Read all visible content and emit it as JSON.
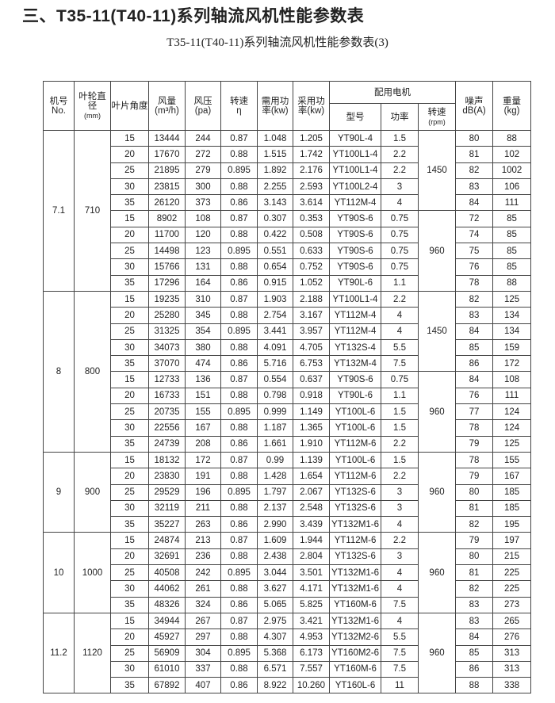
{
  "title": "三、T35-11(T40-11)系列轴流风机性能参数表",
  "subtitle": "T35-11(T40-11)系列轴流风机性能参数表(3)",
  "header": {
    "machine_no": "机号",
    "machine_no_en": "No.",
    "diameter": "叶轮直径",
    "diameter_unit": "(mm)",
    "angle": "叶片角度",
    "flow": "风量",
    "flow_unit": "(m³/h)",
    "pressure": "风压",
    "pressure_unit": "(pa)",
    "speed": "转速",
    "speed_unit": "η",
    "required_power": "需用功",
    "required_power_unit": "率(kw)",
    "used_power": "采用功",
    "used_power_unit": "率(kw)",
    "motor": "配用电机",
    "model": "型号",
    "power": "功率",
    "rpm": "转速",
    "rpm_unit": "(rpm)",
    "noise": "噪声",
    "noise_unit": "dB(A)",
    "weight": "重量",
    "weight_unit": "(kg)"
  },
  "groups": [
    {
      "no": "7.1",
      "diameter": "710",
      "rpm_blocks": [
        "1450",
        "960"
      ],
      "rows": [
        [
          "15",
          "13444",
          "244",
          "0.87",
          "1.048",
          "1.205",
          "YT90L-4",
          "1.5",
          "80",
          "88"
        ],
        [
          "20",
          "17670",
          "272",
          "0.88",
          "1.515",
          "1.742",
          "YT100L1-4",
          "2.2",
          "81",
          "102"
        ],
        [
          "25",
          "21895",
          "279",
          "0.895",
          "1.892",
          "2.176",
          "YT100L1-4",
          "2.2",
          "82",
          "1002"
        ],
        [
          "30",
          "23815",
          "300",
          "0.88",
          "2.255",
          "2.593",
          "YT100L2-4",
          "3",
          "83",
          "106"
        ],
        [
          "35",
          "26120",
          "373",
          "0.86",
          "3.143",
          "3.614",
          "YT112M-4",
          "4",
          "84",
          "111"
        ],
        [
          "15",
          "8902",
          "108",
          "0.87",
          "0.307",
          "0.353",
          "YT90S-6",
          "0.75",
          "72",
          "85"
        ],
        [
          "20",
          "11700",
          "120",
          "0.88",
          "0.422",
          "0.508",
          "YT90S-6",
          "0.75",
          "74",
          "85"
        ],
        [
          "25",
          "14498",
          "123",
          "0.895",
          "0.551",
          "0.633",
          "YT90S-6",
          "0.75",
          "75",
          "85"
        ],
        [
          "30",
          "15766",
          "131",
          "0.88",
          "0.654",
          "0.752",
          "YT90S-6",
          "0.75",
          "76",
          "85"
        ],
        [
          "35",
          "17296",
          "164",
          "0.86",
          "0.915",
          "1.052",
          "YT90L-6",
          "1.1",
          "78",
          "88"
        ]
      ]
    },
    {
      "no": "8",
      "diameter": "800",
      "rpm_blocks": [
        "1450",
        "960"
      ],
      "rows": [
        [
          "15",
          "19235",
          "310",
          "0.87",
          "1.903",
          "2.188",
          "YT100L1-4",
          "2.2",
          "82",
          "125"
        ],
        [
          "20",
          "25280",
          "345",
          "0.88",
          "2.754",
          "3.167",
          "YT112M-4",
          "4",
          "83",
          "134"
        ],
        [
          "25",
          "31325",
          "354",
          "0.895",
          "3.441",
          "3.957",
          "YT112M-4",
          "4",
          "84",
          "134"
        ],
        [
          "30",
          "34073",
          "380",
          "0.88",
          "4.091",
          "4.705",
          "YT132S-4",
          "5.5",
          "85",
          "159"
        ],
        [
          "35",
          "37070",
          "474",
          "0.86",
          "5.716",
          "6.753",
          "YT132M-4",
          "7.5",
          "86",
          "172"
        ],
        [
          "15",
          "12733",
          "136",
          "0.87",
          "0.554",
          "0.637",
          "YT90S-6",
          "0.75",
          "84",
          "108"
        ],
        [
          "20",
          "16733",
          "151",
          "0.88",
          "0.798",
          "0.918",
          "YT90L-6",
          "1.1",
          "76",
          "111"
        ],
        [
          "25",
          "20735",
          "155",
          "0.895",
          "0.999",
          "1.149",
          "YT100L-6",
          "1.5",
          "77",
          "124"
        ],
        [
          "30",
          "22556",
          "167",
          "0.88",
          "1.187",
          "1.365",
          "YT100L-6",
          "1.5",
          "78",
          "124"
        ],
        [
          "35",
          "24739",
          "208",
          "0.86",
          "1.661",
          "1.910",
          "YT112M-6",
          "2.2",
          "79",
          "125"
        ]
      ]
    },
    {
      "no": "9",
      "diameter": "900",
      "rpm_blocks": [
        "960"
      ],
      "rows": [
        [
          "15",
          "18132",
          "172",
          "0.87",
          "0.99",
          "1.139",
          "YT100L-6",
          "1.5",
          "78",
          "155"
        ],
        [
          "20",
          "23830",
          "191",
          "0.88",
          "1.428",
          "1.654",
          "YT112M-6",
          "2.2",
          "79",
          "167"
        ],
        [
          "25",
          "29529",
          "196",
          "0.895",
          "1.797",
          "2.067",
          "YT132S-6",
          "3",
          "80",
          "185"
        ],
        [
          "30",
          "32119",
          "211",
          "0.88",
          "2.137",
          "2.548",
          "YT132S-6",
          "3",
          "81",
          "185"
        ],
        [
          "35",
          "35227",
          "263",
          "0.86",
          "2.990",
          "3.439",
          "YT132M1-6",
          "4",
          "82",
          "195"
        ]
      ]
    },
    {
      "no": "10",
      "diameter": "1000",
      "rpm_blocks": [
        "960"
      ],
      "rows": [
        [
          "15",
          "24874",
          "213",
          "0.87",
          "1.609",
          "1.944",
          "YT112M-6",
          "2.2",
          "79",
          "197"
        ],
        [
          "20",
          "32691",
          "236",
          "0.88",
          "2.438",
          "2.804",
          "YT132S-6",
          "3",
          "80",
          "215"
        ],
        [
          "25",
          "40508",
          "242",
          "0.895",
          "3.044",
          "3.501",
          "YT132M1-6",
          "4",
          "81",
          "225"
        ],
        [
          "30",
          "44062",
          "261",
          "0.88",
          "3.627",
          "4.171",
          "YT132M1-6",
          "4",
          "82",
          "225"
        ],
        [
          "35",
          "48326",
          "324",
          "0.86",
          "5.065",
          "5.825",
          "YT160M-6",
          "7.5",
          "83",
          "273"
        ]
      ]
    },
    {
      "no": "11.2",
      "diameter": "1120",
      "rpm_blocks": [
        "960"
      ],
      "rows": [
        [
          "15",
          "34944",
          "267",
          "0.87",
          "2.975",
          "3.421",
          "YT132M1-6",
          "4",
          "83",
          "265"
        ],
        [
          "20",
          "45927",
          "297",
          "0.88",
          "4.307",
          "4.953",
          "YT132M2-6",
          "5.5",
          "84",
          "276"
        ],
        [
          "25",
          "56909",
          "304",
          "0.895",
          "5.368",
          "6.173",
          "YT160M2-6",
          "7.5",
          "85",
          "313"
        ],
        [
          "30",
          "61010",
          "337",
          "0.88",
          "6.571",
          "7.557",
          "YT160M-6",
          "7.5",
          "86",
          "313"
        ],
        [
          "35",
          "67892",
          "407",
          "0.86",
          "8.922",
          "10.260",
          "YT160L-6",
          "11",
          "88",
          "338"
        ]
      ]
    }
  ]
}
